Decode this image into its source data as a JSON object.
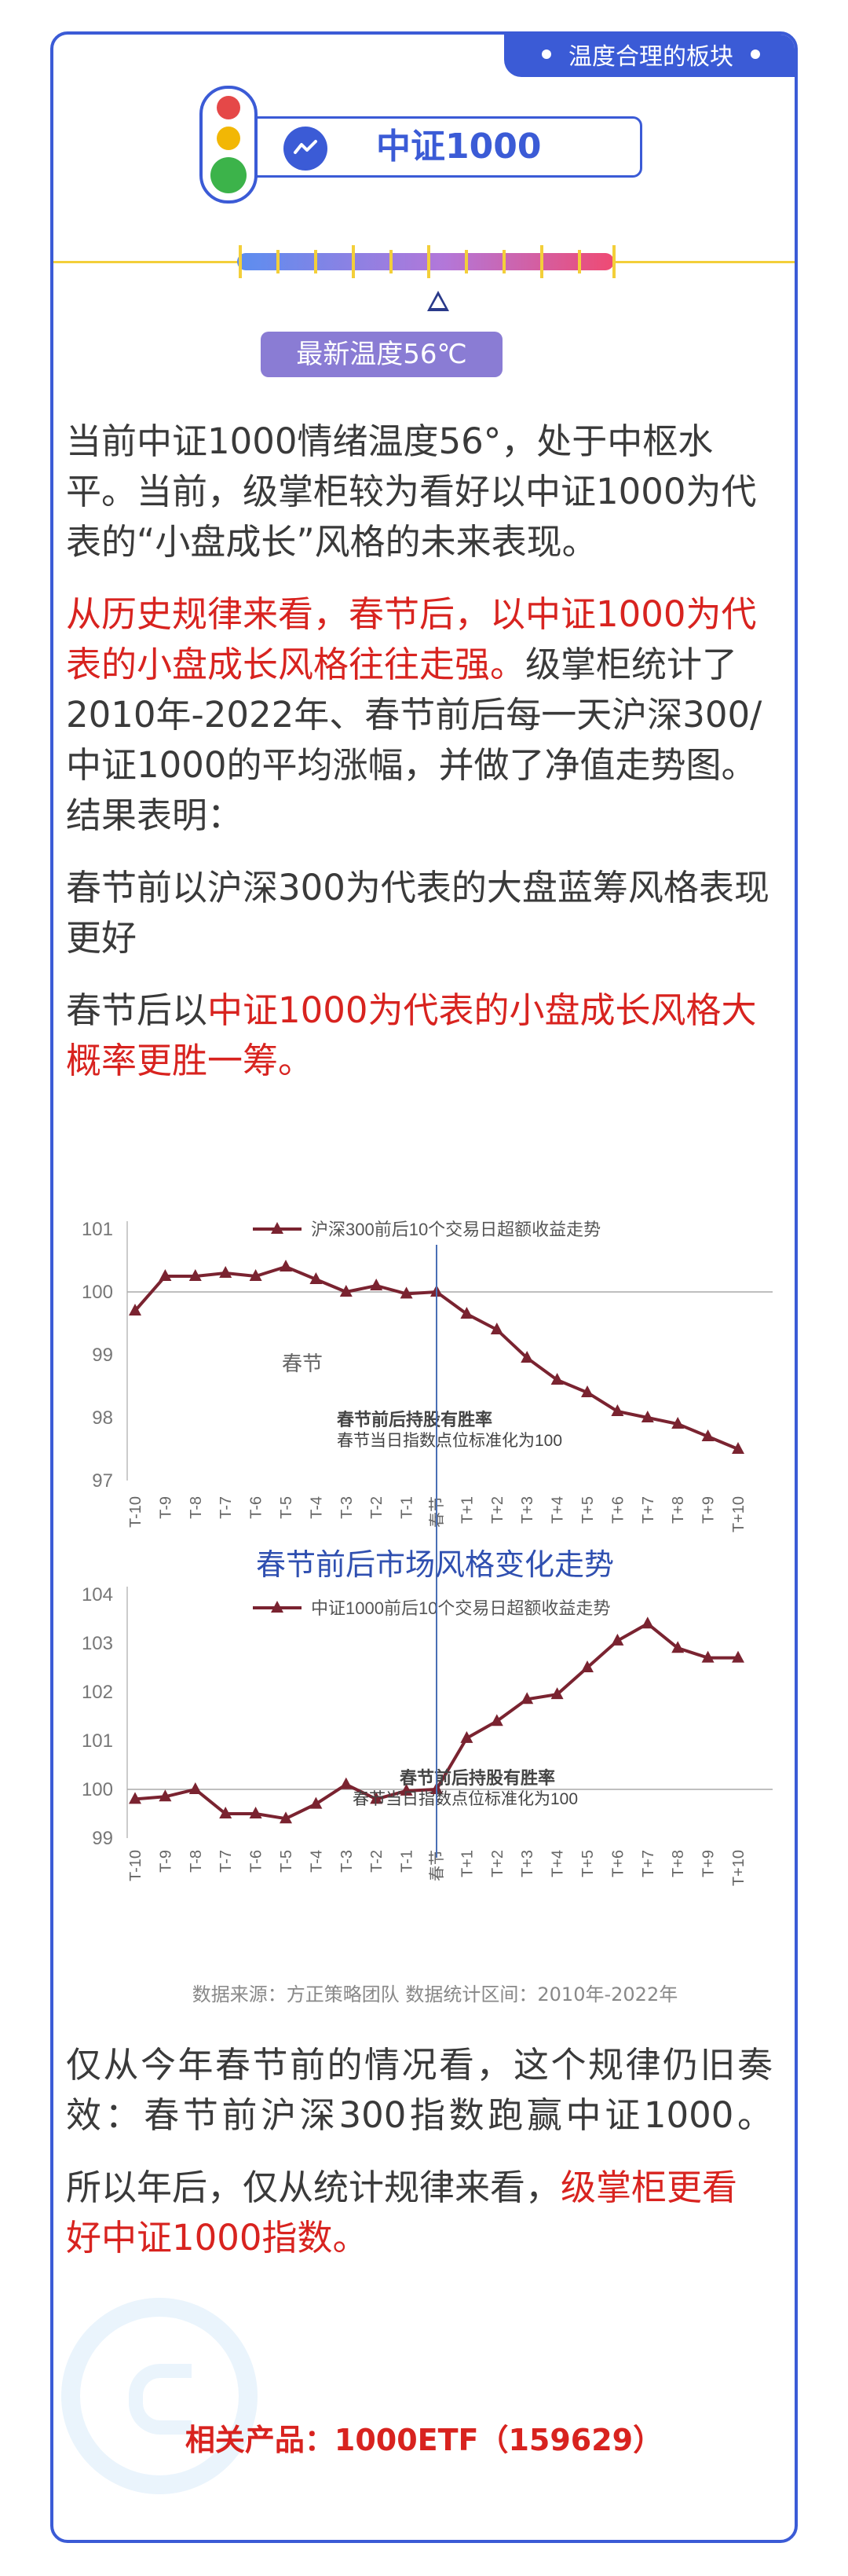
{
  "tag": {
    "label": "温度合理的板块"
  },
  "index_card": {
    "name": "中证1000"
  },
  "gauge": {
    "temperature_label": "最新温度56℃",
    "temperature_value": 56
  },
  "colors": {
    "accent": "#3b5bd6",
    "highlight_red": "#d8231f",
    "series": "#7a2330",
    "badge": "#8a7cd4"
  },
  "paragraphs": [
    [
      {
        "text": "当前中证1000情绪温度56°，处于中枢水平。当前，级掌柜较为看好以中证1000为代表的“小盘成长”风格的未来表现。"
      }
    ],
    [
      {
        "text": "从历史规律来看，春节后，以中证1000为代表的小盘成长风格往往走强。",
        "red": true
      },
      {
        "text": "级掌柜统计了2010年-2022年、春节前后每一天沪深300/中证1000的平均涨幅，并做了净值走势图。结果表明："
      }
    ],
    [
      {
        "text": "春节前以沪深300为代表的大盘蓝筹风格表现更好"
      }
    ],
    [
      {
        "text": "春节后以"
      },
      {
        "text": "中证1000为代表的小盘成长风格大概率更胜一筹。",
        "red": true
      }
    ]
  ],
  "chart_text": {
    "title": "春节前后市场风格变化走势",
    "source": "数据来源：方正策略团队  数据统计区间：2010年-2022年"
  },
  "chart_data": [
    {
      "type": "line",
      "series": [
        {
          "name": "沪深300前后10个交易日超额收益走势",
          "values": [
            99.7,
            100.25,
            100.25,
            100.3,
            100.25,
            100.4,
            100.2,
            100.0,
            100.1,
            99.97,
            100.0,
            99.65,
            99.4,
            98.95,
            98.6,
            98.4,
            98.1,
            98.0,
            97.9,
            97.7,
            97.5
          ]
        }
      ],
      "categories": [
        "T-10",
        "T-9",
        "T-8",
        "T-7",
        "T-6",
        "T-5",
        "T-4",
        "T-3",
        "T-2",
        "T-1",
        "春节",
        "T+1",
        "T+2",
        "T+3",
        "T+4",
        "T+5",
        "T+6",
        "T+7",
        "T+8",
        "T+9",
        "T+10"
      ],
      "ylim": [
        97,
        101
      ],
      "yticks": [
        97,
        98,
        99,
        100,
        101
      ],
      "annotations": [
        "春节",
        "春节前后持股有胜率",
        "春节当日指数点位标准化为100"
      ]
    },
    {
      "type": "line",
      "series": [
        {
          "name": "中证1000前后10个交易日超额收益走势",
          "values": [
            99.8,
            99.85,
            100.0,
            99.5,
            99.5,
            99.4,
            99.7,
            100.1,
            99.8,
            99.97,
            100.0,
            101.05,
            101.4,
            101.85,
            101.95,
            102.5,
            103.05,
            103.4,
            102.9,
            102.7,
            102.7
          ]
        }
      ],
      "categories": [
        "T-10",
        "T-9",
        "T-8",
        "T-7",
        "T-6",
        "T-5",
        "T-4",
        "T-3",
        "T-2",
        "T-1",
        "春节",
        "T+1",
        "T+2",
        "T+3",
        "T+4",
        "T+5",
        "T+6",
        "T+7",
        "T+8",
        "T+9",
        "T+10"
      ],
      "ylim": [
        99,
        104
      ],
      "yticks": [
        99,
        100,
        101,
        102,
        103,
        104
      ],
      "annotations": [
        "春节前后持股有胜率",
        "春节当日指数点位标准化为100"
      ]
    }
  ],
  "paragraphs2": [
    [
      {
        "text": "仅从今年春节前的情况看，这个规律仍旧奏效：春节前沪深300指数跑赢中证1000。"
      }
    ],
    [
      {
        "text": "所以年后，仅从统计规律来看，"
      },
      {
        "text": "级掌柜更看好中证1000指数。",
        "red": true
      }
    ]
  ],
  "related": {
    "label": "相关产品：1000ETF（159629）"
  }
}
